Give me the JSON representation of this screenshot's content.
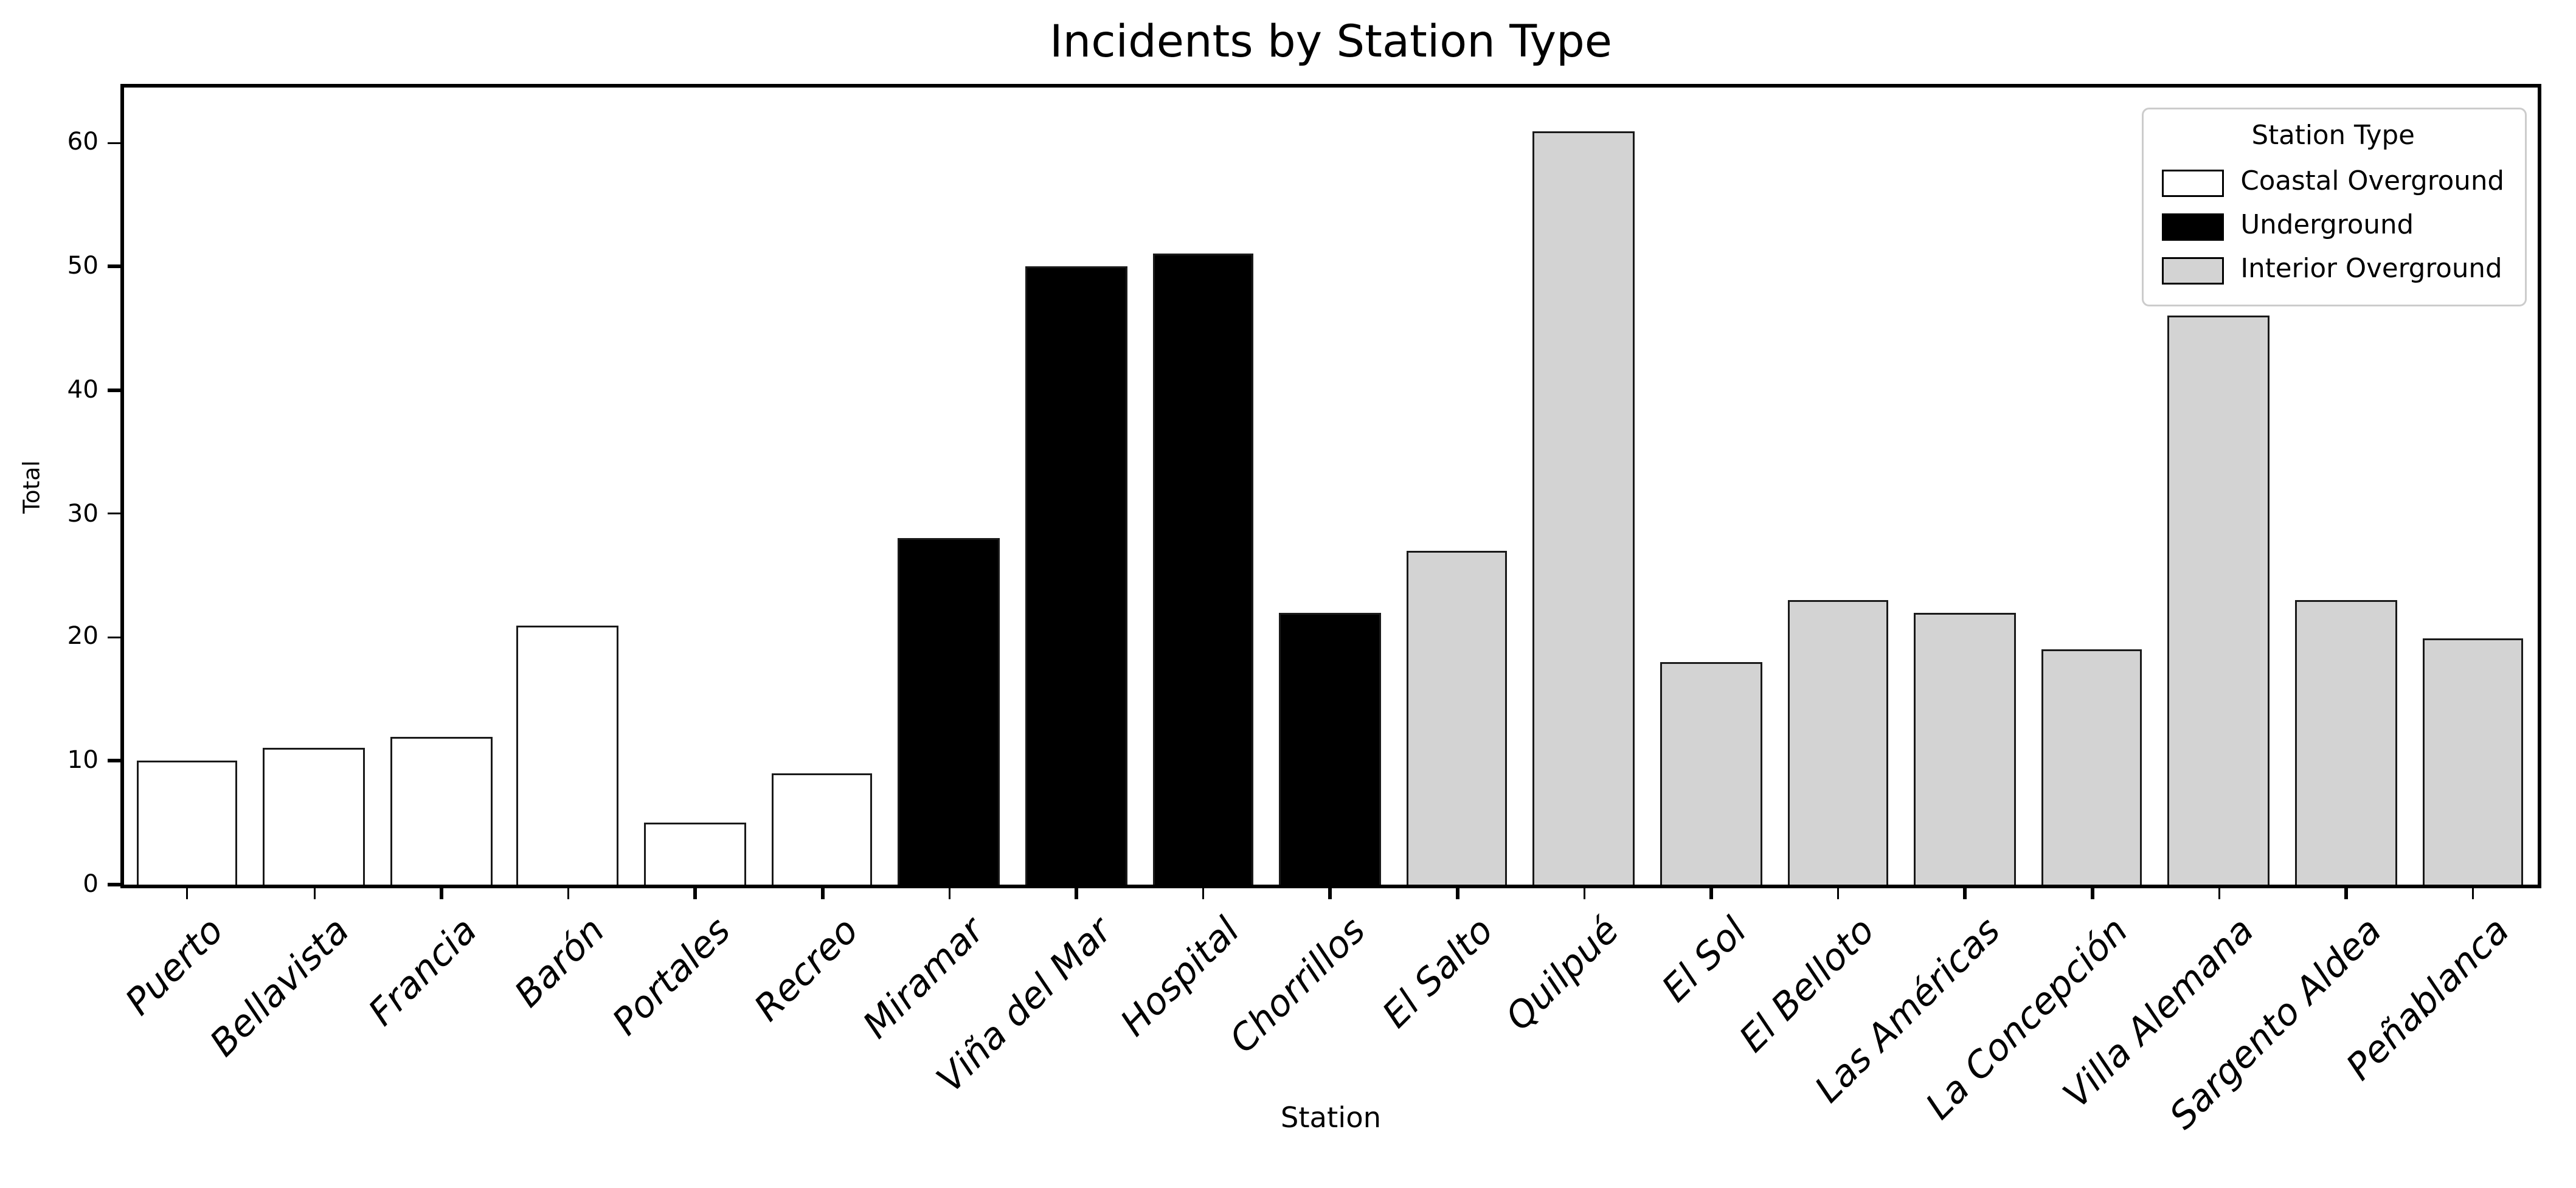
{
  "title": "Incidents by Station Type",
  "x_axis": {
    "label": "Station"
  },
  "y_axis": {
    "label": "Total",
    "ticks": [
      0,
      10,
      20,
      30,
      40,
      50,
      60
    ]
  },
  "legend": {
    "title": "Station Type",
    "entries": [
      {
        "label": "Coastal Overground",
        "color": "#ffffff"
      },
      {
        "label": "Underground",
        "color": "#000000"
      },
      {
        "label": "Interior Overground",
        "color": "#d3d3d3"
      }
    ]
  },
  "chart_data": {
    "type": "bar",
    "title": "Incidents by Station Type",
    "xlabel": "Station",
    "ylabel": "Total",
    "ylim": [
      0,
      64.4
    ],
    "grid": false,
    "legend_position": "upper right",
    "categories": [
      "Puerto",
      "Bellavista",
      "Francia",
      "Barón",
      "Portales",
      "Recreo",
      "Miramar",
      "Viña del Mar",
      "Hospital",
      "Chorrillos",
      "El Salto",
      "Quilpué",
      "El Sol",
      "El Belloto",
      "Las Américas",
      "La Concepción",
      "Villa Alemana",
      "Sargento Aldea",
      "Peñablanca"
    ],
    "values": [
      10,
      11,
      12,
      21,
      5,
      9,
      28,
      50,
      51,
      22,
      27,
      61,
      18,
      23,
      22,
      19,
      46,
      23,
      20
    ],
    "station_types": [
      "Coastal Overground",
      "Coastal Overground",
      "Coastal Overground",
      "Coastal Overground",
      "Coastal Overground",
      "Coastal Overground",
      "Underground",
      "Underground",
      "Underground",
      "Underground",
      "Interior Overground",
      "Interior Overground",
      "Interior Overground",
      "Interior Overground",
      "Interior Overground",
      "Interior Overground",
      "Interior Overground",
      "Interior Overground",
      "Interior Overground"
    ],
    "type_colors": {
      "Coastal Overground": "#ffffff",
      "Underground": "#000000",
      "Interior Overground": "#d3d3d3"
    },
    "bar_edge_color": "#1a1a1a"
  }
}
